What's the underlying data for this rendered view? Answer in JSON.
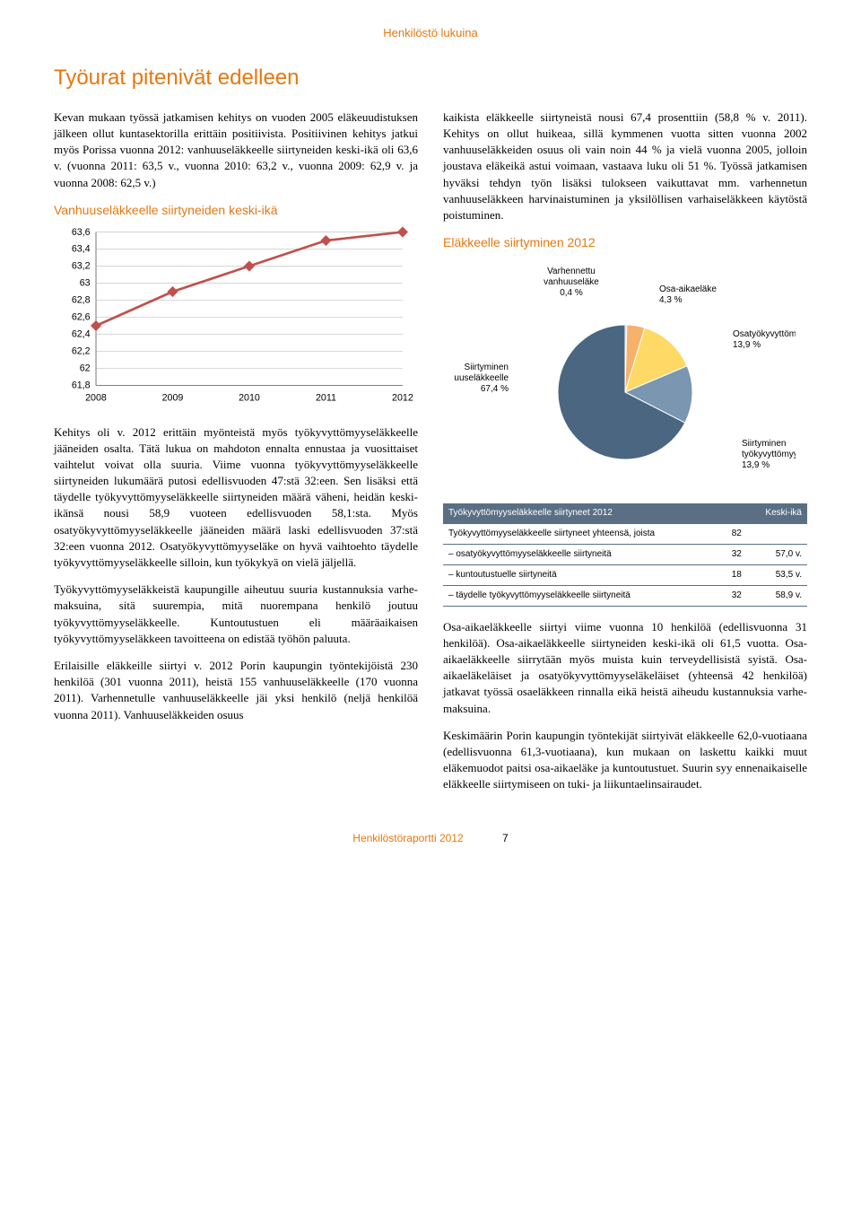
{
  "header": {
    "section": "Henkilöstö lukuina"
  },
  "title": "Työurat pitenivät edelleen",
  "left": {
    "p1": "Kevan mukaan työssä jatkamisen kehitys on vuoden 2005 eläkeuudistuksen jälkeen ollut kuntasektorilla erittäin positiivista. Positiivinen kehitys jatkui myös Porissa vuonna 2012: vanhuuseläkkeelle siirtyneiden keski-ikä oli 63,6 v. (vuonna 2011: 63,5 v., vuonna 2010: 63,2 v., vuonna 2009: 62,9 v. ja vuonna 2008: 62,5 v.)",
    "chart_title": "Vanhuuseläkkeelle siirtyneiden keski-ikä",
    "p2": "Kehitys oli v. 2012 erittäin myönteistä myös työkyvyttömyyseläkkeelle jääneiden osalta. Tätä lukua on mahdoton ennalta ennustaa ja vuosittaiset vaihtelut voivat olla suuria. Viime vuonna työkyvyttömyyseläkkeelle siirtyneiden lukumäärä putosi edellisvuoden 47:stä 32:een. Sen lisäksi että täydelle työkyvyttömyyseläkkeelle siirtyneiden määrä väheni, heidän keski-ikänsä nousi 58,9 vuoteen edellisvuoden 58,1:sta. Myös osatyökyvyttömyyseläkkeelle jääneiden määrä laski edellisvuoden 37:stä 32:een vuonna 2012. Osatyökyvyttömyyseläke on hyvä vaihtoehto täydelle työkyvyttömyyseläkkeelle silloin, kun työkykyä on vielä jäljellä.",
    "p3": "Työkyvyttömyyseläkkeistä kaupungille aiheutuu suuria kustannuksia varhe-maksuina, sitä suurempia, mitä nuorempana henkilö joutuu työkyvyttömyyseläkkeelle. Kuntoutustuen eli määräaikaisen työkyvyttömyyseläkkeen tavoitteena on edistää työhön paluuta.",
    "p4": "Erilaisille eläkkeille siirtyi v. 2012 Porin kaupungin työntekijöistä 230 henkilöä (301 vuonna 2011), heistä 155 vanhuuseläkkeelle (170 vuonna 2011). Varhennetulle vanhuuseläkkeelle jäi yksi henkilö (neljä henkilöä vuonna 2011). Vanhuuseläkkeiden osuus"
  },
  "right": {
    "p1": "kaikista eläkkeelle siirtyneistä nousi 67,4 prosenttiin (58,8 % v. 2011). Kehitys on ollut huikeaa, sillä kymmenen vuotta sitten vuonna 2002 vanhuuseläkkeiden osuus oli vain noin 44 % ja vielä vuonna 2005, jolloin joustava eläkeikä astui voimaan, vastaava luku oli 51 %. Työssä jatkamisen hyväksi tehdyn työn lisäksi tulokseen vaikuttavat mm. varhennetun vanhuuseläkkeen harvinaistuminen ja yksilöllisen varhaiseläkkeen käytöstä poistuminen.",
    "pie_title": "Eläkkeelle siirtyminen 2012",
    "p2": "Osa-aikaeläkkeelle siirtyi viime vuonna 10 henkilöä (edellisvuonna 31 henkilöä). Osa-aikaeläkkeelle siirtyneiden keski-ikä oli 61,5 vuotta. Osa-aikaeläkkeelle siirrytään myös muista kuin terveydellisistä syistä. Osa-aikaeläkeläiset ja osatyökyvyttömyyseläkeläiset (yhteensä 42 henkilöä) jatkavat työssä osaeläkkeen rinnalla eikä heistä aiheudu kustannuksia varhe-maksuina.",
    "p3": "Keskimäärin Porin kaupungin työntekijät siirtyivät eläkkeelle 62,0-vuotiaana (edellisvuonna 61,3-vuotiaana), kun mukaan on laskettu kaikki muut eläkemuodot paitsi osa-aikaeläke ja kuntoutustuet. Suurin syy ennenaikaiselle eläkkeelle siirtymiseen on tuki- ja liikuntaelinsairaudet."
  },
  "line_chart": {
    "type": "line",
    "x_labels": [
      "2008",
      "2009",
      "2010",
      "2011",
      "2012"
    ],
    "y_ticks": [
      "61,8",
      "62",
      "62,2",
      "62,4",
      "62,6",
      "62,8",
      "63",
      "63,2",
      "63,4",
      "63,6"
    ],
    "values": [
      62.5,
      62.9,
      63.2,
      63.5,
      63.6
    ],
    "ylim": [
      61.8,
      63.6
    ],
    "line_color": "#c0504d",
    "marker_color": "#c0504d",
    "grid_color": "#d9d9d9",
    "axis_color": "#808080",
    "background_color": "#ffffff"
  },
  "pie_chart": {
    "type": "pie",
    "slices": [
      {
        "label": "Varhennettu vanhuuseläke",
        "pct_text": "0,4 %",
        "value": 0.4,
        "color": "#b8cce4"
      },
      {
        "label": "Osa-aikaeläke",
        "pct_text": "4,3 %",
        "value": 4.3,
        "color": "#f6b26b"
      },
      {
        "label": "Osatyökyvyttömyyseläke",
        "pct_text": "13,9 %",
        "value": 13.9,
        "color": "#ffd966"
      },
      {
        "label": "Siirtyminen työkyvyttömyyseläkkeelle",
        "pct_text": "13,9 %",
        "value": 13.9,
        "color": "#7a96b0"
      },
      {
        "label": "Siirtyminen vanhuuseläkkeelle",
        "pct_text": "67,4 %",
        "value": 67.4,
        "color": "#4a6681"
      }
    ],
    "background_color": "#ffffff"
  },
  "table": {
    "header": {
      "c1": "Työkyvyttömyyseläkkeelle siirtyneet 2012",
      "c2": "",
      "c3": "Keski-ikä"
    },
    "rows": [
      {
        "c1": "Työkyvyttömyyseläkkeelle siirtyneet yhteensä, joista",
        "c2": "82",
        "c3": ""
      },
      {
        "c1": "– osatyökyvyttömyyseläkkeelle siirtyneitä",
        "c2": "32",
        "c3": "57,0 v."
      },
      {
        "c1": "– kuntoutustuelle siirtyneitä",
        "c2": "18",
        "c3": "53,5 v."
      },
      {
        "c1": "– täydelle työkyvyttömyyseläkkeelle siirtyneitä",
        "c2": "32",
        "c3": "58,9 v."
      }
    ]
  },
  "footer": {
    "text": "Henkilöstöraportti 2012",
    "page": "7"
  }
}
